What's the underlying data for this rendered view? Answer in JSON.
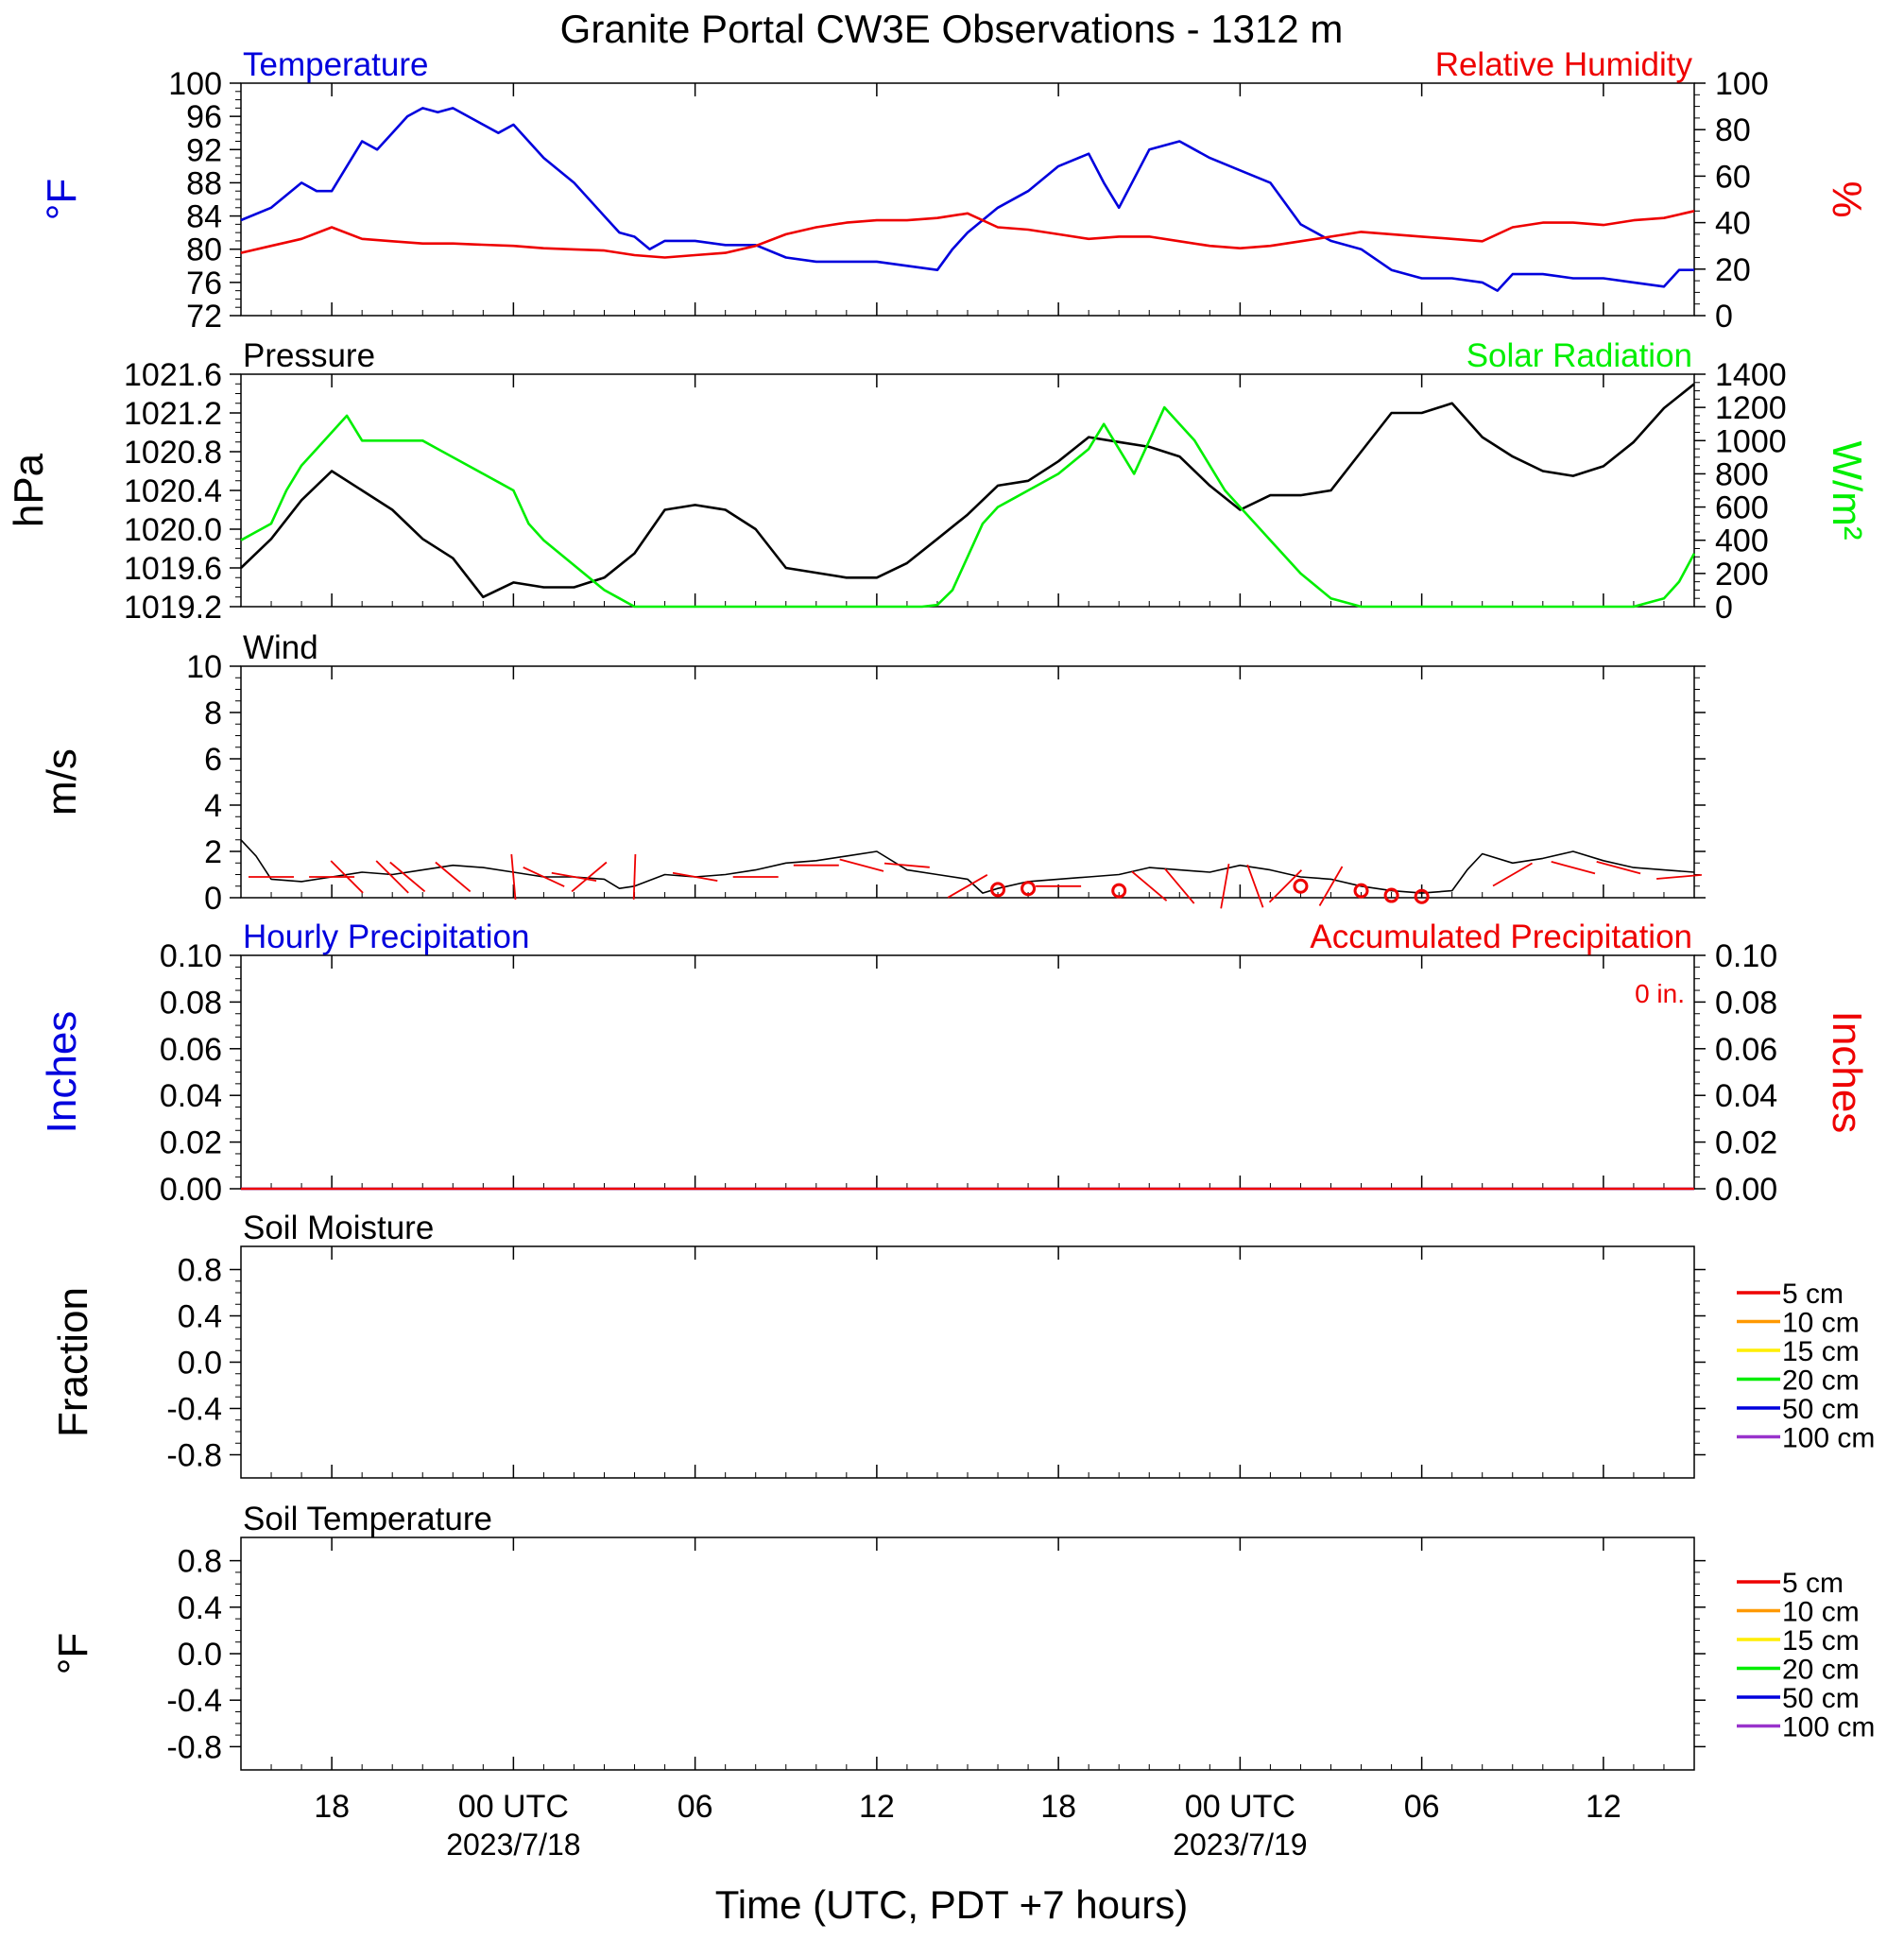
{
  "title": "Granite Portal CW3E Observations - 1312 m",
  "xlabel": "Time (UTC, PDT +7 hours)",
  "colors": {
    "temperature": "#0000dd",
    "humidity": "#ee0000",
    "pressure": "#000000",
    "solar": "#00ee00",
    "wind": "#000000",
    "barbs": "#ee0000",
    "hourly_precip": "#0000dd",
    "accum_precip": "#ee0000"
  },
  "time_axis": {
    "x_range_hours": [
      -9,
      39
    ],
    "ticks": [
      {
        "h": -6,
        "label": "18",
        "date": ""
      },
      {
        "h": 0,
        "label": "00 UTC",
        "date": "2023/7/18"
      },
      {
        "h": 6,
        "label": "06",
        "date": ""
      },
      {
        "h": 12,
        "label": "12",
        "date": ""
      },
      {
        "h": 18,
        "label": "18",
        "date": ""
      },
      {
        "h": 24,
        "label": "00 UTC",
        "date": "2023/7/19"
      },
      {
        "h": 30,
        "label": "06",
        "date": ""
      },
      {
        "h": 36,
        "label": "12",
        "date": ""
      }
    ]
  },
  "chart_data": [
    {
      "id": "temp-rh",
      "type": "line",
      "title_left": "Temperature",
      "title_right": "Relative Humidity",
      "ylabel_left": "°F",
      "ylabel_right": "%",
      "ylim_left": [
        72,
        100
      ],
      "ylim_right": [
        0,
        100
      ],
      "yticks_left": [
        "72",
        "76",
        "80",
        "84",
        "88",
        "92",
        "96",
        "100"
      ],
      "yticks_right": [
        "0",
        "20",
        "40",
        "60",
        "80",
        "100"
      ],
      "series": [
        {
          "name": "Temperature",
          "axis": "left",
          "x": [
            -9,
            -8,
            -7,
            -6.5,
            -6,
            -5.5,
            -5,
            -4.5,
            -4,
            -3.5,
            -3,
            -2.5,
            -2,
            -1.5,
            -1,
            -0.5,
            0,
            0.5,
            1,
            2,
            3,
            3.5,
            4,
            4.5,
            5,
            6,
            7,
            8,
            9,
            10,
            11,
            12,
            13,
            14,
            14.5,
            15,
            16,
            17,
            18,
            19,
            19.5,
            20,
            21,
            22,
            22.5,
            23,
            24,
            25,
            26,
            27,
            28,
            29,
            30,
            31,
            32,
            32.5,
            33,
            34,
            35,
            36,
            37,
            38,
            38.5,
            39
          ],
          "y": [
            83.5,
            85,
            88,
            87,
            87,
            90,
            93,
            92,
            94,
            96,
            97,
            96.5,
            97,
            96,
            95,
            94,
            95,
            93,
            91,
            88,
            84,
            82,
            81.5,
            80,
            81,
            81,
            80.5,
            80.5,
            79,
            78.5,
            78.5,
            78.5,
            78,
            77.5,
            80,
            82,
            85,
            87,
            90,
            91.5,
            88,
            85,
            92,
            93,
            92,
            91,
            89.5,
            88,
            83,
            81,
            80,
            77.5,
            76.5,
            76.5,
            76,
            75,
            77,
            77,
            76.5,
            76.5,
            76,
            75.5,
            77.5,
            77.5
          ]
        },
        {
          "name": "Relative Humidity",
          "axis": "right",
          "x": [
            -9,
            -8,
            -7,
            -6,
            -5,
            -4,
            -3,
            -2,
            -1,
            0,
            1,
            2,
            3,
            4,
            5,
            6,
            7,
            8,
            9,
            10,
            11,
            12,
            13,
            14,
            15,
            16,
            17,
            18,
            19,
            20,
            21,
            22,
            23,
            24,
            25,
            26,
            27,
            28,
            29,
            30,
            31,
            32,
            33,
            34,
            35,
            36,
            37,
            38,
            39
          ],
          "y": [
            27,
            30,
            33,
            38,
            33,
            32,
            31,
            31,
            30.5,
            30,
            29,
            28.5,
            28,
            26,
            25,
            26,
            27,
            30,
            35,
            38,
            40,
            41,
            41,
            42,
            44,
            38,
            37,
            35,
            33,
            34,
            34,
            32,
            30,
            29,
            30,
            32,
            34,
            36,
            35,
            34,
            33,
            32,
            38,
            40,
            40,
            39,
            41,
            42,
            45
          ]
        }
      ]
    },
    {
      "id": "pressure-solar",
      "type": "line",
      "title_left": "Pressure",
      "title_right": "Solar Radiation",
      "ylabel_left": "hPa",
      "ylabel_right": "W/m²",
      "ylim_left": [
        1019.2,
        1021.6
      ],
      "ylim_right": [
        0,
        1400
      ],
      "yticks_left": [
        "1019.2",
        "1019.6",
        "1020.0",
        "1020.4",
        "1020.8",
        "1021.2",
        "1021.6"
      ],
      "yticks_right": [
        "0",
        "200",
        "400",
        "600",
        "800",
        "1000",
        "1200",
        "1400"
      ],
      "series": [
        {
          "name": "Pressure",
          "axis": "left",
          "x": [
            -9,
            -8,
            -7,
            -6,
            -5,
            -4,
            -3,
            -2,
            -1,
            0,
            1,
            2,
            3,
            4,
            5,
            6,
            7,
            8,
            9,
            10,
            11,
            12,
            13,
            14,
            15,
            16,
            17,
            18,
            19,
            20,
            21,
            22,
            23,
            24,
            25,
            26,
            27,
            28,
            29,
            30,
            31,
            32,
            33,
            34,
            35,
            36,
            37,
            38,
            39
          ],
          "y": [
            1019.6,
            1019.9,
            1020.3,
            1020.6,
            1020.4,
            1020.2,
            1019.9,
            1019.7,
            1019.3,
            1019.45,
            1019.4,
            1019.4,
            1019.5,
            1019.75,
            1020.2,
            1020.25,
            1020.2,
            1020.0,
            1019.6,
            1019.55,
            1019.5,
            1019.5,
            1019.65,
            1019.9,
            1020.15,
            1020.45,
            1020.5,
            1020.7,
            1020.95,
            1020.9,
            1020.85,
            1020.75,
            1020.45,
            1020.2,
            1020.35,
            1020.35,
            1020.4,
            1020.8,
            1021.2,
            1021.2,
            1021.3,
            1020.95,
            1020.75,
            1020.6,
            1020.55,
            1020.65,
            1020.9,
            1021.25,
            1021.5
          ]
        },
        {
          "name": "Solar Radiation",
          "axis": "right",
          "x": [
            -9,
            -8.5,
            -8,
            -7.5,
            -7,
            -6.5,
            -6,
            -5.5,
            -5,
            -4.5,
            -4,
            -3.5,
            -3,
            -2.5,
            -2,
            -1.5,
            -1,
            -0.5,
            0,
            0.5,
            1,
            2,
            3,
            3.5,
            4,
            13.5,
            14,
            14.5,
            15,
            15.5,
            16,
            16.5,
            17,
            18,
            19,
            19.5,
            20,
            20.5,
            21,
            21.5,
            22,
            22.5,
            23,
            23.5,
            24,
            24.5,
            25,
            26,
            27,
            28,
            29,
            30,
            35,
            37,
            38,
            38.5,
            39
          ],
          "y": [
            400,
            450,
            500,
            700,
            850,
            950,
            1050,
            1150,
            1000,
            1000,
            1000,
            1000,
            1000,
            950,
            900,
            850,
            800,
            750,
            700,
            500,
            400,
            250,
            100,
            50,
            0,
            0,
            10,
            100,
            300,
            500,
            600,
            650,
            700,
            800,
            950,
            1100,
            950,
            800,
            1000,
            1200,
            1100,
            1000,
            850,
            700,
            600,
            500,
            400,
            200,
            50,
            0,
            0,
            0,
            0,
            0,
            50,
            150,
            320
          ]
        }
      ]
    },
    {
      "id": "wind",
      "type": "line",
      "title_left": "Wind",
      "ylabel_left": "m/s",
      "ylim_left": [
        0,
        10
      ],
      "yticks_left": [
        "0",
        "2",
        "4",
        "6",
        "8",
        "10"
      ],
      "series": [
        {
          "name": "Wind",
          "axis": "left",
          "x": [
            -9,
            -8.5,
            -8,
            -7,
            -6,
            -5,
            -4,
            -3,
            -2,
            -1,
            0,
            1,
            2,
            3,
            3.5,
            4,
            5,
            6,
            7,
            8,
            9,
            10,
            11,
            12,
            13,
            14,
            15,
            15.5,
            16,
            17,
            18,
            19,
            20,
            21,
            22,
            23,
            24,
            25,
            26,
            27,
            28,
            29,
            30,
            31,
            31.5,
            32,
            33,
            34,
            35,
            36,
            37,
            38,
            39
          ],
          "y": [
            2.5,
            1.8,
            0.8,
            0.7,
            0.9,
            1.1,
            1.0,
            1.2,
            1.4,
            1.3,
            1.1,
            0.9,
            0.9,
            0.8,
            0.4,
            0.5,
            1.0,
            0.9,
            1.0,
            1.2,
            1.5,
            1.6,
            1.8,
            2.0,
            1.2,
            1.0,
            0.8,
            0.2,
            0.4,
            0.7,
            0.8,
            0.9,
            1.0,
            1.3,
            1.2,
            1.1,
            1.4,
            1.2,
            0.9,
            0.8,
            0.5,
            0.3,
            0.2,
            0.3,
            1.2,
            1.9,
            1.5,
            1.7,
            2.0,
            1.6,
            1.3,
            1.2,
            1.1
          ]
        }
      ],
      "barbs": [
        {
          "h": -8,
          "y": 0.9,
          "angle": 0
        },
        {
          "h": -6,
          "y": 0.9,
          "angle": 0
        },
        {
          "h": -5.5,
          "y": 0.9,
          "angle": -45
        },
        {
          "h": -4,
          "y": 0.9,
          "angle": -45
        },
        {
          "h": -3.5,
          "y": 0.9,
          "angle": -40
        },
        {
          "h": -2,
          "y": 0.9,
          "angle": -40
        },
        {
          "h": 0,
          "y": 0.9,
          "angle": -85
        },
        {
          "h": 1,
          "y": 0.9,
          "angle": -25
        },
        {
          "h": 2,
          "y": 0.9,
          "angle": -10
        },
        {
          "h": 2.5,
          "y": 0.9,
          "angle": 40
        },
        {
          "h": 4,
          "y": 0.9,
          "angle": 88
        },
        {
          "h": 6,
          "y": 0.9,
          "angle": -10
        },
        {
          "h": 8,
          "y": 0.9,
          "angle": 0
        },
        {
          "h": 10,
          "y": 1.4,
          "angle": 0
        },
        {
          "h": 11.5,
          "y": 1.4,
          "angle": -15
        },
        {
          "h": 13,
          "y": 1.4,
          "angle": -5
        },
        {
          "h": 15,
          "y": 0.5,
          "angle": 30
        },
        {
          "h": 18,
          "y": 0.5,
          "angle": 0
        },
        {
          "h": 21,
          "y": 0.5,
          "angle": -40
        },
        {
          "h": 22,
          "y": 0.5,
          "angle": -50
        },
        {
          "h": 23.5,
          "y": 0.5,
          "angle": 80
        },
        {
          "h": 24.5,
          "y": 0.5,
          "angle": -70
        },
        {
          "h": 25.5,
          "y": 0.5,
          "angle": 45
        },
        {
          "h": 27,
          "y": 0.5,
          "angle": 60
        },
        {
          "h": 33,
          "y": 1.0,
          "angle": 30
        },
        {
          "h": 35,
          "y": 1.3,
          "angle": -15
        },
        {
          "h": 36.5,
          "y": 1.3,
          "angle": -15
        },
        {
          "h": 38.5,
          "y": 0.9,
          "angle": 5
        }
      ],
      "calm_markers": [
        {
          "h": 16,
          "y": 0.35
        },
        {
          "h": 17,
          "y": 0.4
        },
        {
          "h": 20,
          "y": 0.3
        },
        {
          "h": 26,
          "y": 0.5
        },
        {
          "h": 28,
          "y": 0.3
        },
        {
          "h": 29,
          "y": 0.1
        },
        {
          "h": 30,
          "y": 0.05
        }
      ]
    },
    {
      "id": "precip",
      "type": "line",
      "title_left": "Hourly Precipitation",
      "title_right": "Accumulated Precipitation",
      "ylabel_left": "Inches",
      "ylabel_right": "Inches",
      "annotation": "0 in.",
      "ylim_left": [
        0,
        0.1
      ],
      "ylim_right": [
        0,
        0.1
      ],
      "yticks_left": [
        "0.00",
        "0.02",
        "0.04",
        "0.06",
        "0.08",
        "0.10"
      ],
      "yticks_right": [
        "0.00",
        "0.02",
        "0.04",
        "0.06",
        "0.08",
        "0.10"
      ],
      "series": [
        {
          "name": "Hourly Precipitation",
          "axis": "left",
          "x": [
            -9,
            39
          ],
          "y": [
            0,
            0
          ]
        },
        {
          "name": "Accumulated Precipitation",
          "axis": "right",
          "x": [
            -9,
            39
          ],
          "y": [
            0,
            0
          ]
        }
      ]
    },
    {
      "id": "soil-moisture",
      "type": "line",
      "title_left": "Soil Moisture",
      "ylabel_left": "Fraction",
      "ylim_left": [
        -1,
        1
      ],
      "yticks_left": [
        "-0.8",
        "-0.4",
        "0.0",
        "0.4",
        "0.8"
      ],
      "legend": [
        {
          "label": "5 cm",
          "color": "#ee0000"
        },
        {
          "label": "10 cm",
          "color": "#ff9900"
        },
        {
          "label": "15 cm",
          "color": "#ffee00"
        },
        {
          "label": "20 cm",
          "color": "#00ee00"
        },
        {
          "label": "50 cm",
          "color": "#0000dd"
        },
        {
          "label": "100 cm",
          "color": "#9933cc"
        }
      ],
      "series": []
    },
    {
      "id": "soil-temp",
      "type": "line",
      "title_left": "Soil Temperature",
      "ylabel_left": "°F",
      "ylim_left": [
        -1,
        1
      ],
      "yticks_left": [
        "-0.8",
        "-0.4",
        "0.0",
        "0.4",
        "0.8"
      ],
      "legend": [
        {
          "label": "5 cm",
          "color": "#ee0000"
        },
        {
          "label": "10 cm",
          "color": "#ff9900"
        },
        {
          "label": "15 cm",
          "color": "#ffee00"
        },
        {
          "label": "20 cm",
          "color": "#00ee00"
        },
        {
          "label": "50 cm",
          "color": "#0000dd"
        },
        {
          "label": "100 cm",
          "color": "#9933cc"
        }
      ],
      "series": []
    }
  ]
}
